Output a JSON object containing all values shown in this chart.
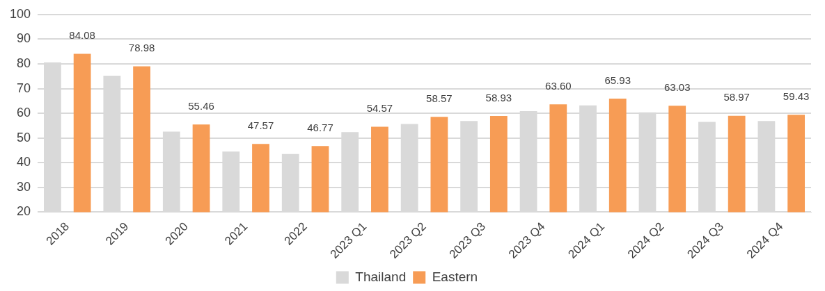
{
  "chart_data": {
    "type": "bar",
    "categories": [
      "2018",
      "2019",
      "2020",
      "2021",
      "2022",
      "2023 Q1",
      "2023 Q2",
      "2023 Q3",
      "2023 Q4",
      "2024 Q1",
      "2024 Q2",
      "2024 Q3",
      "2024 Q4"
    ],
    "series": [
      {
        "name": "Thailand",
        "color": "#d9d9d9",
        "values": [
          80.6,
          75.2,
          52.6,
          44.5,
          43.5,
          52.4,
          55.7,
          56.9,
          60.9,
          63.2,
          60.4,
          56.5,
          56.9
        ]
      },
      {
        "name": "Eastern",
        "color": "#f79c55",
        "values": [
          84.08,
          78.98,
          55.46,
          47.57,
          46.77,
          54.57,
          58.57,
          58.93,
          63.6,
          65.93,
          63.03,
          58.97,
          59.43
        ],
        "value_labels": [
          "84.08",
          "78.98",
          "55.46",
          "47.57",
          "46.77",
          "54.57",
          "58.57",
          "58.93",
          "63.60",
          "65.93",
          "63.03",
          "58.97",
          "59.43"
        ]
      }
    ],
    "ylim": [
      20,
      100
    ],
    "yticks": [
      20,
      30,
      40,
      50,
      60,
      70,
      80,
      90,
      100
    ],
    "grid": "y",
    "legend": "bottom"
  }
}
